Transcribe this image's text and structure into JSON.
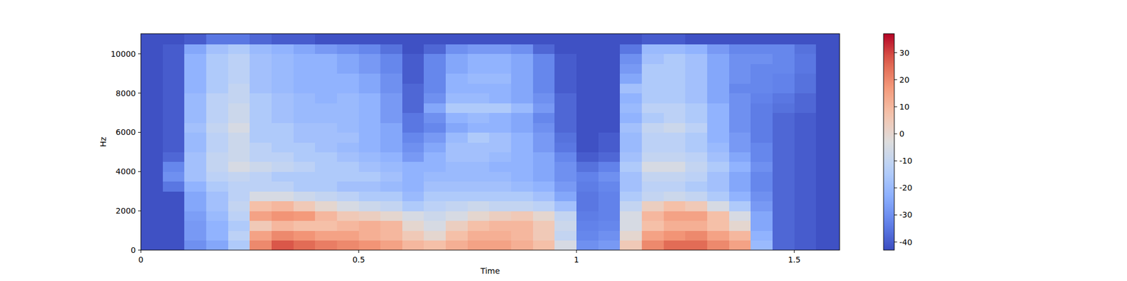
{
  "chart_data": {
    "type": "heatmap",
    "x_label": "Time",
    "y_label": "Hz",
    "x": [
      0.025,
      0.075,
      0.125,
      0.175,
      0.225,
      0.275,
      0.325,
      0.375,
      0.425,
      0.475,
      0.525,
      0.575,
      0.625,
      0.675,
      0.725,
      0.775,
      0.825,
      0.875,
      0.925,
      0.975,
      1.025,
      1.075,
      1.125,
      1.175,
      1.225,
      1.275,
      1.325,
      1.375,
      1.425,
      1.475,
      1.525,
      1.575
    ],
    "y": [
      250,
      750,
      1250,
      1750,
      2250,
      2750,
      3250,
      3750,
      4250,
      4750,
      5250,
      5750,
      6250,
      6750,
      7250,
      7750,
      8250,
      8750,
      9250,
      9750,
      10250,
      10750
    ],
    "z": [
      [
        -42,
        -42,
        -30,
        -25,
        -15,
        20,
        28,
        25,
        22,
        20,
        18,
        15,
        10,
        8,
        12,
        15,
        15,
        12,
        8,
        -5,
        -30,
        -28,
        5,
        20,
        25,
        25,
        20,
        15,
        -20,
        -38,
        -40,
        -42
      ],
      [
        -42,
        -42,
        -28,
        -22,
        -12,
        15,
        20,
        18,
        15,
        15,
        12,
        10,
        5,
        0,
        8,
        12,
        12,
        10,
        5,
        -10,
        -32,
        -30,
        0,
        15,
        18,
        20,
        15,
        10,
        -22,
        -38,
        -40,
        -42
      ],
      [
        -42,
        -42,
        -28,
        -22,
        -15,
        5,
        10,
        8,
        8,
        10,
        12,
        10,
        0,
        -5,
        3,
        8,
        10,
        10,
        5,
        -8,
        -33,
        -32,
        -5,
        8,
        12,
        12,
        8,
        0,
        -25,
        -38,
        -40,
        -42
      ],
      [
        -42,
        -42,
        -27,
        -20,
        -12,
        15,
        18,
        17,
        10,
        5,
        3,
        0,
        -5,
        -8,
        -5,
        0,
        3,
        5,
        0,
        -10,
        -34,
        -33,
        -5,
        10,
        15,
        15,
        8,
        -5,
        -25,
        -38,
        -40,
        -42
      ],
      [
        -42,
        -42,
        -25,
        -18,
        -10,
        8,
        10,
        5,
        0,
        -5,
        -8,
        -10,
        -15,
        -12,
        -10,
        -8,
        -10,
        -10,
        -12,
        -18,
        -35,
        -33,
        -10,
        3,
        8,
        5,
        -5,
        -15,
        -28,
        -38,
        -40,
        -42
      ],
      [
        -42,
        -42,
        -25,
        -18,
        -12,
        -5,
        -5,
        -8,
        -10,
        -12,
        -15,
        -15,
        -20,
        -15,
        -15,
        -15,
        -15,
        -15,
        -18,
        -25,
        -35,
        -33,
        -15,
        -10,
        -8,
        -10,
        -15,
        -22,
        -30,
        -38,
        -40,
        -42
      ],
      [
        -42,
        -35,
        -22,
        -15,
        -12,
        -12,
        -12,
        -15,
        -15,
        -18,
        -18,
        -20,
        -22,
        -18,
        -18,
        -18,
        -18,
        -20,
        -22,
        -28,
        -34,
        -32,
        -18,
        -12,
        -12,
        -15,
        -18,
        -25,
        -32,
        -38,
        -40,
        -42
      ],
      [
        -42,
        -30,
        -18,
        -12,
        -10,
        -12,
        -15,
        -15,
        -15,
        -15,
        -15,
        -18,
        -22,
        -20,
        -20,
        -20,
        -20,
        -22,
        -25,
        -30,
        -33,
        -30,
        -18,
        -10,
        -10,
        -12,
        -18,
        -25,
        -32,
        -38,
        -40,
        -42
      ],
      [
        -42,
        -32,
        -18,
        -10,
        -5,
        -8,
        -10,
        -12,
        -15,
        -15,
        -18,
        -20,
        -22,
        -22,
        -20,
        -20,
        -22,
        -22,
        -25,
        -30,
        -36,
        -33,
        -15,
        -5,
        -5,
        -10,
        -15,
        -22,
        -30,
        -38,
        -40,
        -42
      ],
      [
        -42,
        -38,
        -18,
        -10,
        -8,
        -12,
        -12,
        -15,
        -15,
        -18,
        -20,
        -22,
        -28,
        -22,
        -18,
        -18,
        -20,
        -22,
        -25,
        -32,
        -40,
        -38,
        -18,
        -10,
        -10,
        -12,
        -18,
        -25,
        -32,
        -38,
        -40,
        -42
      ],
      [
        -42,
        -40,
        -20,
        -12,
        -8,
        -12,
        -15,
        -15,
        -18,
        -20,
        -22,
        -25,
        -30,
        -25,
        -18,
        -18,
        -18,
        -22,
        -28,
        -35,
        -42,
        -40,
        -20,
        -12,
        -12,
        -15,
        -20,
        -28,
        -32,
        -38,
        -40,
        -42
      ],
      [
        -42,
        -40,
        -20,
        -12,
        -8,
        -15,
        -15,
        -18,
        -18,
        -18,
        -22,
        -25,
        -32,
        -28,
        -20,
        -15,
        -18,
        -22,
        -28,
        -36,
        -42,
        -40,
        -20,
        -12,
        -12,
        -15,
        -22,
        -28,
        -34,
        -38,
        -40,
        -42
      ],
      [
        -42,
        -40,
        -18,
        -10,
        -5,
        -15,
        -15,
        -18,
        -18,
        -20,
        -22,
        -25,
        -35,
        -32,
        -25,
        -22,
        -22,
        -25,
        -30,
        -38,
        -42,
        -42,
        -18,
        -10,
        -8,
        -12,
        -22,
        -30,
        -34,
        -38,
        -40,
        -42
      ],
      [
        -42,
        -40,
        -20,
        -12,
        -8,
        -15,
        -18,
        -20,
        -20,
        -20,
        -22,
        -28,
        -35,
        -30,
        -22,
        -20,
        -22,
        -25,
        -32,
        -38,
        -42,
        -42,
        -22,
        -15,
        -12,
        -15,
        -22,
        -30,
        -34,
        -38,
        -40,
        -42
      ],
      [
        -42,
        -40,
        -20,
        -12,
        -8,
        -15,
        -18,
        -20,
        -20,
        -20,
        -22,
        -28,
        -38,
        -25,
        -15,
        -15,
        -15,
        -20,
        -28,
        -38,
        -42,
        -42,
        -20,
        -12,
        -12,
        -15,
        -22,
        -30,
        -34,
        -36,
        -38,
        -42
      ],
      [
        -42,
        -40,
        -20,
        -12,
        -10,
        -15,
        -18,
        -20,
        -22,
        -20,
        -22,
        -28,
        -38,
        -30,
        -20,
        -20,
        -22,
        -25,
        -30,
        -38,
        -42,
        -42,
        -22,
        -15,
        -15,
        -18,
        -25,
        -30,
        -33,
        -35,
        -38,
        -42
      ],
      [
        -42,
        -40,
        -22,
        -15,
        -10,
        -18,
        -20,
        -22,
        -22,
        -22,
        -25,
        -30,
        -38,
        -32,
        -22,
        -22,
        -22,
        -25,
        -32,
        -40,
        -42,
        -42,
        -18,
        -15,
        -15,
        -18,
        -25,
        -32,
        -32,
        -33,
        -36,
        -42
      ],
      [
        -42,
        -40,
        -22,
        -15,
        -12,
        -18,
        -20,
        -22,
        -22,
        -22,
        -25,
        -30,
        -40,
        -32,
        -22,
        -20,
        -20,
        -25,
        -32,
        -40,
        -42,
        -42,
        -25,
        -15,
        -15,
        -18,
        -25,
        -30,
        -32,
        -33,
        -36,
        -42
      ],
      [
        -42,
        -40,
        -22,
        -15,
        -12,
        -18,
        -20,
        -22,
        -22,
        -25,
        -28,
        -32,
        -40,
        -32,
        -25,
        -22,
        -22,
        -25,
        -32,
        -40,
        -42,
        -42,
        -28,
        -15,
        -15,
        -18,
        -25,
        -30,
        -32,
        -32,
        -35,
        -42
      ],
      [
        -42,
        -40,
        -22,
        -15,
        -12,
        -18,
        -20,
        -22,
        -22,
        -25,
        -28,
        -32,
        -40,
        -32,
        -25,
        -22,
        -22,
        -25,
        -32,
        -40,
        -42,
        -42,
        -30,
        -18,
        -15,
        -18,
        -25,
        -30,
        -30,
        -32,
        -35,
        -42
      ],
      [
        -42,
        -40,
        -25,
        -18,
        -15,
        -20,
        -22,
        -25,
        -28,
        -30,
        -32,
        -36,
        -42,
        -38,
        -30,
        -28,
        -28,
        -30,
        -38,
        -42,
        -42,
        -42,
        -35,
        -20,
        -20,
        -22,
        -28,
        -32,
        -32,
        -32,
        -36,
        -42
      ],
      [
        -42,
        -42,
        -40,
        -35,
        -35,
        -38,
        -40,
        -40,
        -42,
        -42,
        -42,
        -42,
        -42,
        -42,
        -42,
        -42,
        -42,
        -42,
        -42,
        -42,
        -42,
        -42,
        -42,
        -40,
        -40,
        -42,
        -42,
        -42,
        -42,
        -42,
        -42,
        -42
      ]
    ],
    "xlim": [
      0,
      1.604
    ],
    "ylim": [
      0,
      11025
    ],
    "xticks": [
      0,
      0.5,
      1,
      1.5
    ],
    "yticks": [
      0,
      2000,
      4000,
      6000,
      8000,
      10000
    ],
    "colorbar": {
      "range": [
        -43,
        37
      ],
      "ticks": [
        -40,
        -30,
        -20,
        -10,
        0,
        10,
        20,
        30
      ]
    }
  }
}
